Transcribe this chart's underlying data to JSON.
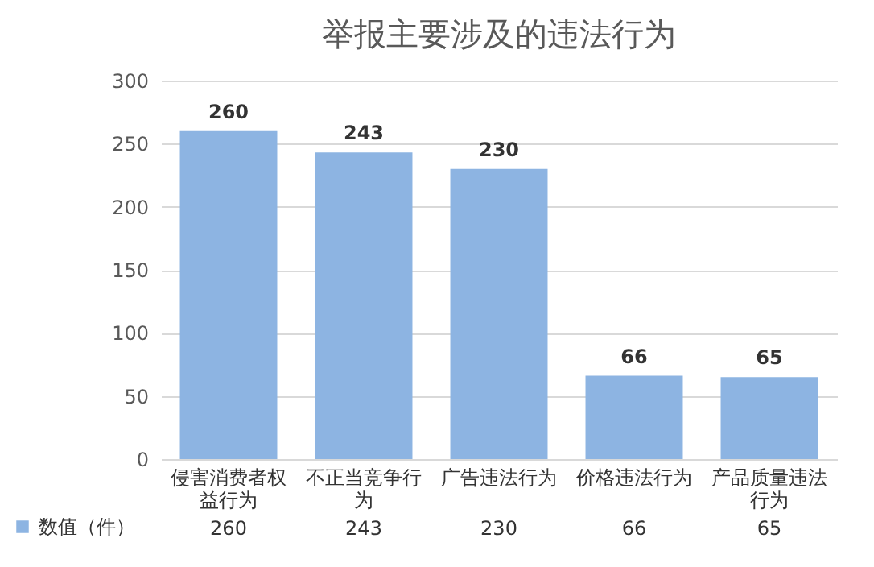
{
  "chart_data": {
    "type": "bar",
    "title": "举报主要涉及的违法行为",
    "categories": [
      "侵害消费者权益行为",
      "不正当竞争行为",
      "广告违法行为",
      "价格违法行为",
      "产品质量违法行为"
    ],
    "series": [
      {
        "name": "数值（件）",
        "color": "#8db4e2",
        "values": [
          260,
          243,
          230,
          66,
          65
        ],
        "value_labels": [
          "260",
          "243",
          "230",
          "66",
          "65"
        ]
      }
    ],
    "ylim": [
      0,
      300
    ],
    "yticks": [
      0,
      50,
      100,
      150,
      200,
      250,
      300
    ],
    "grid": "y",
    "data_labels": true,
    "legend": "bottom left"
  }
}
